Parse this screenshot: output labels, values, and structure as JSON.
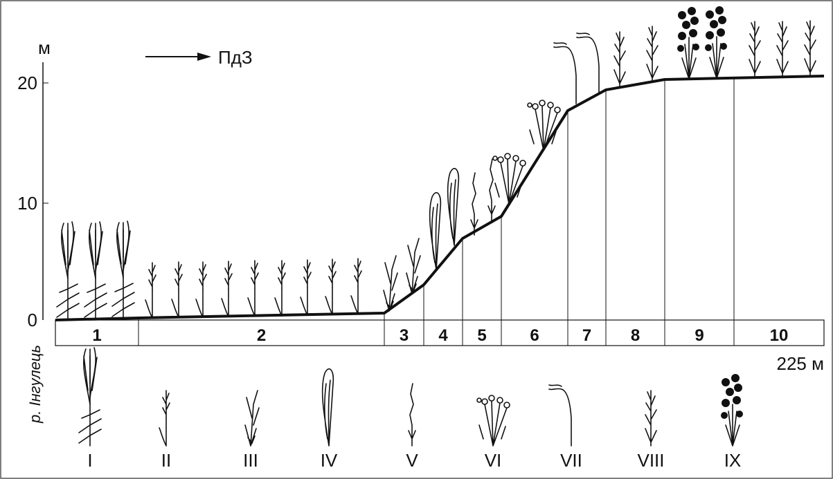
{
  "axis": {
    "unit": "м",
    "ticks": [
      "20",
      "10",
      "0"
    ]
  },
  "direction": "ПдЗ",
  "distance": "225 м",
  "river": "р. Інгулець",
  "segments": [
    "1",
    "2",
    "3",
    "4",
    "5",
    "6",
    "7",
    "8",
    "9",
    "10"
  ],
  "legend": [
    "I",
    "II",
    "III",
    "IV",
    "V",
    "VI",
    "VII",
    "VIII",
    "IX"
  ]
}
